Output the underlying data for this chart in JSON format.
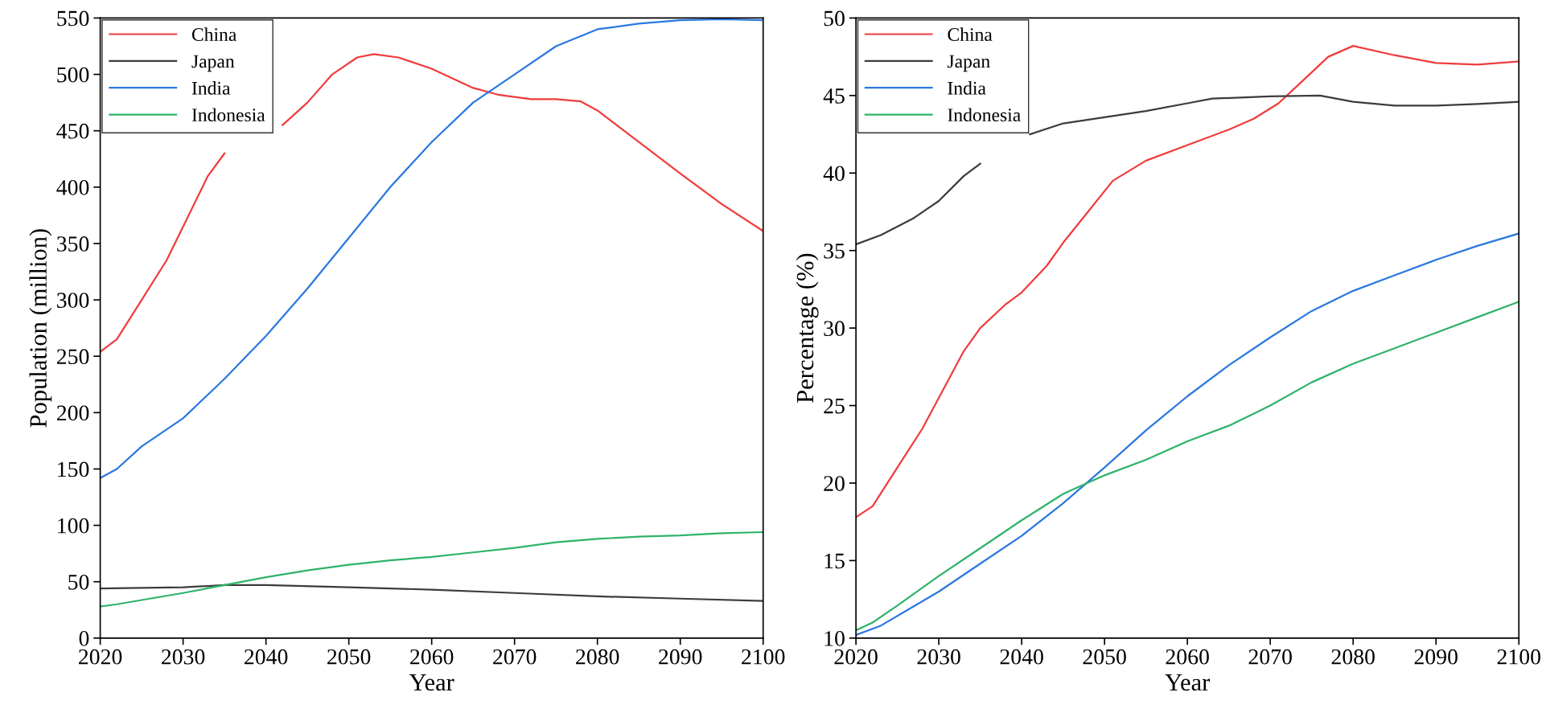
{
  "chart_data": [
    {
      "type": "line",
      "xlabel": "Year",
      "ylabel": "Population (million)",
      "xlim": [
        2020,
        2100
      ],
      "xticks": [
        2020,
        2030,
        2040,
        2050,
        2060,
        2070,
        2080,
        2090,
        2100
      ],
      "ylim": [
        0,
        550
      ],
      "yticks": [
        0,
        50,
        100,
        150,
        200,
        250,
        300,
        350,
        400,
        450,
        500,
        550
      ],
      "grid": false,
      "legend": "top left",
      "series": [
        {
          "name": "China",
          "color": "#f03c3c",
          "x": [
            2020,
            2022,
            2025,
            2028,
            2030,
            2033,
            2035,
            2038,
            2042,
            2045,
            2048,
            2051,
            2053,
            2056,
            2060,
            2065,
            2068,
            2072,
            2075,
            2078,
            2080,
            2085,
            2090,
            2095,
            2100
          ],
          "values": [
            254,
            265,
            300,
            335,
            365,
            410,
            430,
            null,
            455,
            475,
            500,
            515,
            518,
            515,
            505,
            488,
            482,
            478,
            478,
            476,
            468,
            440,
            412,
            385,
            361
          ]
        },
        {
          "name": "Japan",
          "color": "#3c3c3c",
          "x": [
            2020,
            2030,
            2035,
            2040,
            2050,
            2060,
            2070,
            2080,
            2090,
            2100
          ],
          "values": [
            44,
            45,
            47,
            47,
            45,
            43,
            40,
            37,
            35,
            33
          ]
        },
        {
          "name": "India",
          "color": "#2a78e0",
          "x": [
            2020,
            2022,
            2025,
            2030,
            2035,
            2040,
            2045,
            2050,
            2055,
            2060,
            2065,
            2070,
            2075,
            2080,
            2085,
            2090,
            2095,
            2100
          ],
          "values": [
            142,
            150,
            170,
            195,
            230,
            268,
            310,
            355,
            400,
            440,
            475,
            500,
            525,
            540,
            545,
            548,
            549,
            548
          ]
        },
        {
          "name": "Indonesia",
          "color": "#2eb36a",
          "x": [
            2020,
            2022,
            2030,
            2035,
            2040,
            2045,
            2050,
            2055,
            2060,
            2065,
            2070,
            2075,
            2080,
            2085,
            2090,
            2095,
            2100
          ],
          "values": [
            28,
            30,
            40,
            47,
            54,
            60,
            65,
            69,
            72,
            76,
            80,
            85,
            88,
            90,
            91,
            93,
            94
          ]
        }
      ]
    },
    {
      "type": "line",
      "xlabel": "Year",
      "ylabel": "Percentage (%)",
      "xlim": [
        2020,
        2100
      ],
      "xticks": [
        2020,
        2030,
        2040,
        2050,
        2060,
        2070,
        2080,
        2090,
        2100
      ],
      "ylim": [
        10,
        50
      ],
      "yticks": [
        10,
        15,
        20,
        25,
        30,
        35,
        40,
        45,
        50
      ],
      "grid": false,
      "legend": "top left",
      "series": [
        {
          "name": "China",
          "color": "#f03c3c",
          "x": [
            2020,
            2022,
            2025,
            2028,
            2030,
            2033,
            2035,
            2038,
            2040,
            2043,
            2045,
            2048,
            2051,
            2055,
            2060,
            2065,
            2068,
            2071,
            2074,
            2077,
            2080,
            2085,
            2090,
            2095,
            2100
          ],
          "values": [
            17.8,
            18.5,
            21,
            23.5,
            25.5,
            28.5,
            30,
            31.5,
            32.3,
            34,
            35.5,
            37.5,
            39.5,
            40.8,
            41.8,
            42.8,
            43.5,
            44.5,
            46,
            47.5,
            48.2,
            47.6,
            47.1,
            47.0,
            47.2
          ]
        },
        {
          "name": "Japan",
          "color": "#3c3c3c",
          "x": [
            2020,
            2023,
            2027,
            2030,
            2033,
            2035,
            2037,
            2041,
            2045,
            2050,
            2055,
            2060,
            2063,
            2070,
            2076,
            2080,
            2085,
            2090,
            2095,
            2100
          ],
          "values": [
            35.4,
            36,
            37.1,
            38.2,
            39.8,
            40.6,
            null,
            42.5,
            43.2,
            43.6,
            44,
            44.5,
            44.8,
            44.95,
            45.0,
            44.6,
            44.35,
            44.35,
            44.45,
            44.6
          ]
        },
        {
          "name": "India",
          "color": "#2a78e0",
          "x": [
            2020,
            2023,
            2030,
            2035,
            2040,
            2045,
            2050,
            2055,
            2060,
            2065,
            2070,
            2075,
            2080,
            2085,
            2090,
            2095,
            2100
          ],
          "values": [
            10.2,
            10.8,
            13,
            14.8,
            16.6,
            18.7,
            21,
            23.4,
            25.6,
            27.6,
            29.4,
            31.1,
            32.4,
            33.4,
            34.4,
            35.3,
            36.1
          ]
        },
        {
          "name": "Indonesia",
          "color": "#2eb36a",
          "x": [
            2020,
            2022,
            2025,
            2030,
            2035,
            2040,
            2045,
            2050,
            2055,
            2060,
            2065,
            2070,
            2075,
            2080,
            2085,
            2090,
            2095,
            2100
          ],
          "values": [
            10.5,
            11,
            12.1,
            14,
            15.8,
            17.6,
            19.3,
            20.5,
            21.5,
            22.7,
            23.7,
            25,
            26.5,
            27.7,
            28.7,
            29.7,
            30.7,
            31.7
          ]
        }
      ]
    }
  ]
}
